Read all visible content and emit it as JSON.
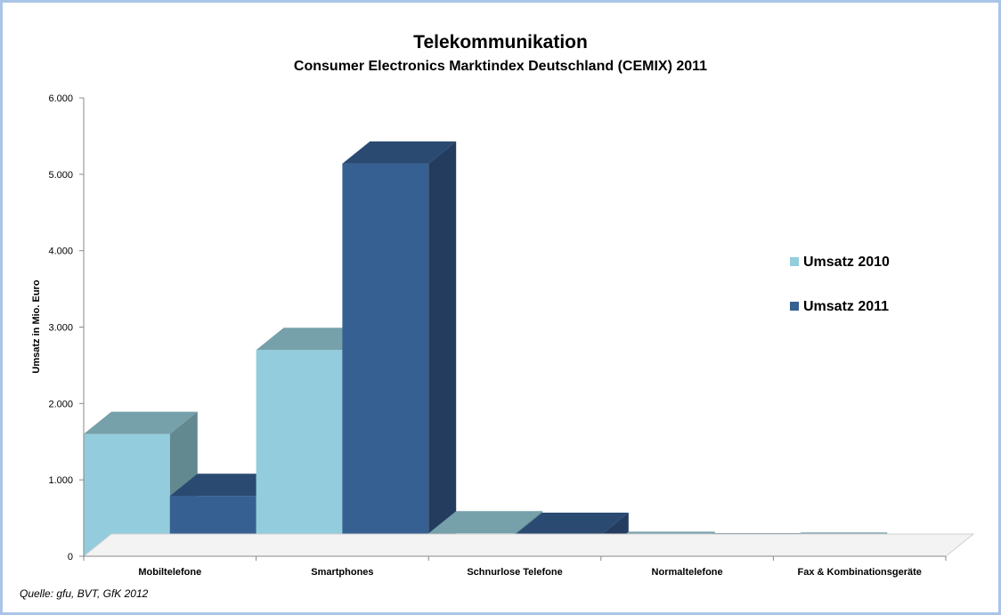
{
  "chart_data": {
    "type": "bar",
    "title": "Telekommunikation",
    "subtitle": "Consumer Electronics Marktindex Deutschland (CEMIX) 2011",
    "ylabel": "Umsatz  in  Mio. Euro",
    "ylim": [
      0,
      6000
    ],
    "yticks": [
      {
        "value": 0,
        "label": "0"
      },
      {
        "value": 1000,
        "label": "1.000"
      },
      {
        "value": 2000,
        "label": "2.000"
      },
      {
        "value": 3000,
        "label": "3.000"
      },
      {
        "value": 4000,
        "label": "4.000"
      },
      {
        "value": 5000,
        "label": "5.000"
      },
      {
        "value": 6000,
        "label": "6.000"
      }
    ],
    "categories": [
      "Mobiltelefone",
      "Smartphones",
      "Schnurlose Telefone",
      "Normaltelefone",
      "Fax & Kombinationsgeräte"
    ],
    "series": [
      {
        "name": "Umsatz 2010",
        "color": "#93cddd",
        "top_color": "#76a0aa",
        "side_color": "#628990",
        "values": [
          1600,
          2700,
          300,
          30,
          20
        ]
      },
      {
        "name": "Umsatz 2011",
        "color": "#376092",
        "top_color": "#2a4a72",
        "side_color": "#243d5f",
        "values": [
          790,
          5140,
          280,
          10,
          5
        ]
      }
    ],
    "legend_position": "right",
    "grid": false
  },
  "source": "Quelle: gfu, BVT, GfK 2012"
}
